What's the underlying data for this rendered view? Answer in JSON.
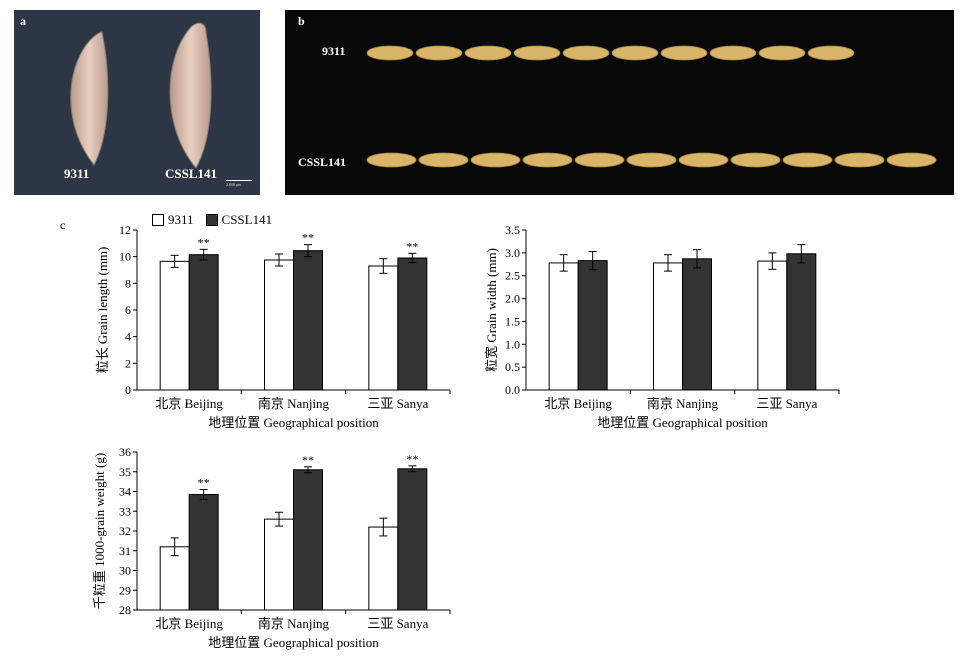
{
  "panel_a": {
    "letter": "a",
    "label_left": "9311",
    "label_right": "CSSL141",
    "scale_bar": "2.000 μm"
  },
  "panel_b": {
    "letter": "b",
    "row1_label": "9311",
    "row2_label": "CSSL141",
    "row1_count": 10,
    "row2_count": 11,
    "grain_color": "#d9b56a"
  },
  "panel_c": {
    "letter": "c"
  },
  "legend": {
    "series1": "9311",
    "series2": "CSSL141"
  },
  "colors": {
    "series1_fill": "#ffffff",
    "series2_fill": "#333333"
  },
  "chart_data": [
    {
      "type": "bar",
      "title": "",
      "ylabel": "粒长 Grain length (mm)",
      "xlabel": "地理位置 Geographical position",
      "ylim": [
        0,
        12
      ],
      "yticks": [
        0,
        2,
        4,
        6,
        8,
        10,
        12
      ],
      "categories": [
        "北京 Beijing",
        "南京 Nanjing",
        "三亚 Sanya"
      ],
      "series": [
        {
          "name": "9311",
          "values": [
            9.65,
            9.75,
            9.3
          ],
          "errors": [
            0.45,
            0.45,
            0.55
          ]
        },
        {
          "name": "CSSL141",
          "values": [
            10.15,
            10.45,
            9.9
          ],
          "errors": [
            0.4,
            0.45,
            0.35
          ]
        }
      ],
      "significance": [
        "**",
        "**",
        "**"
      ]
    },
    {
      "type": "bar",
      "title": "",
      "ylabel": "粒宽 Grain width (mm)",
      "xlabel": "地理位置 Geographical position",
      "ylim": [
        0,
        3.5
      ],
      "yticks": [
        0,
        0.5,
        1.0,
        1.5,
        2.0,
        2.5,
        3.0,
        3.5
      ],
      "categories": [
        "北京 Beijing",
        "南京 Nanjing",
        "三亚 Sanya"
      ],
      "series": [
        {
          "name": "9311",
          "values": [
            2.78,
            2.78,
            2.82
          ],
          "errors": [
            0.18,
            0.18,
            0.18
          ]
        },
        {
          "name": "CSSL141",
          "values": [
            2.83,
            2.87,
            2.98
          ],
          "errors": [
            0.2,
            0.2,
            0.2
          ]
        }
      ],
      "significance": [
        "",
        "",
        ""
      ]
    },
    {
      "type": "bar",
      "title": "",
      "ylabel": "千粒重 1000-grain weight (g)",
      "xlabel": "地理位置 Geographical position",
      "ylim": [
        28,
        36
      ],
      "yticks": [
        28,
        29,
        30,
        31,
        32,
        33,
        34,
        35,
        36
      ],
      "categories": [
        "北京 Beijing",
        "南京 Nanjing",
        "三亚 Sanya"
      ],
      "series": [
        {
          "name": "9311",
          "values": [
            31.2,
            32.6,
            32.2
          ],
          "errors": [
            0.45,
            0.35,
            0.45
          ]
        },
        {
          "name": "CSSL141",
          "values": [
            33.85,
            35.1,
            35.15
          ],
          "errors": [
            0.25,
            0.15,
            0.15
          ]
        }
      ],
      "significance": [
        "**",
        "**",
        "**"
      ]
    }
  ]
}
